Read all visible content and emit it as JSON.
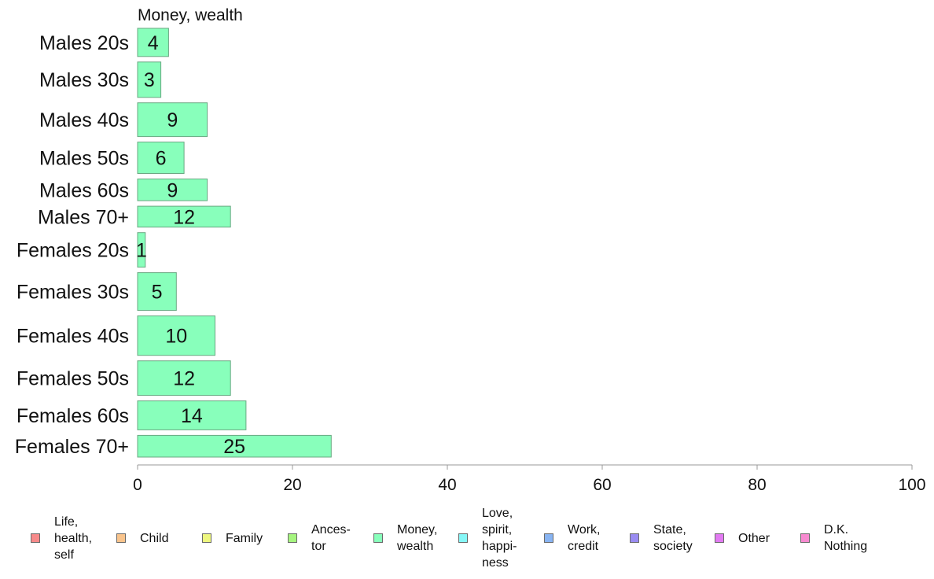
{
  "chart_data": {
    "type": "bar",
    "orientation": "horizontal",
    "title": "Money, wealth",
    "categories": [
      "Males 20s",
      "Males 30s",
      "Males 40s",
      "Males 50s",
      "Males 60s",
      "Males 70+",
      "Females 20s",
      "Females 30s",
      "Females 40s",
      "Females 50s",
      "Females 60s",
      "Females 70+"
    ],
    "values": [
      4,
      3,
      9,
      6,
      9,
      12,
      1,
      5,
      10,
      12,
      14,
      25
    ],
    "bar_thickness_relative": [
      35,
      44,
      42,
      39,
      27,
      26,
      43,
      47,
      49,
      43,
      36,
      27
    ],
    "xlim": [
      0,
      100
    ],
    "xticks": [
      0,
      20,
      40,
      60,
      80,
      100
    ],
    "bar_color": "#88ffbb",
    "bar_border": "#6aa882",
    "grid": false,
    "legend_position": "bottom",
    "legend": [
      {
        "label": "Life,\nhealth,\nself",
        "color": "#f78a8a"
      },
      {
        "label": "Child",
        "color": "#f9c48c"
      },
      {
        "label": "Family",
        "color": "#eef77f"
      },
      {
        "label": "Ances-\ntor",
        "color": "#a6f57f"
      },
      {
        "label": "Money,\nwealth",
        "color": "#88ffbb"
      },
      {
        "label": "Love,\nspirit,\nhappi-\nness",
        "color": "#86f7f7"
      },
      {
        "label": "Work,\ncredit",
        "color": "#88b4f2"
      },
      {
        "label": "State,\nsociety",
        "color": "#9a8cf2"
      },
      {
        "label": "Other",
        "color": "#e27af2"
      },
      {
        "label": "D.K.\nNothing",
        "color": "#f78ad0"
      }
    ]
  }
}
